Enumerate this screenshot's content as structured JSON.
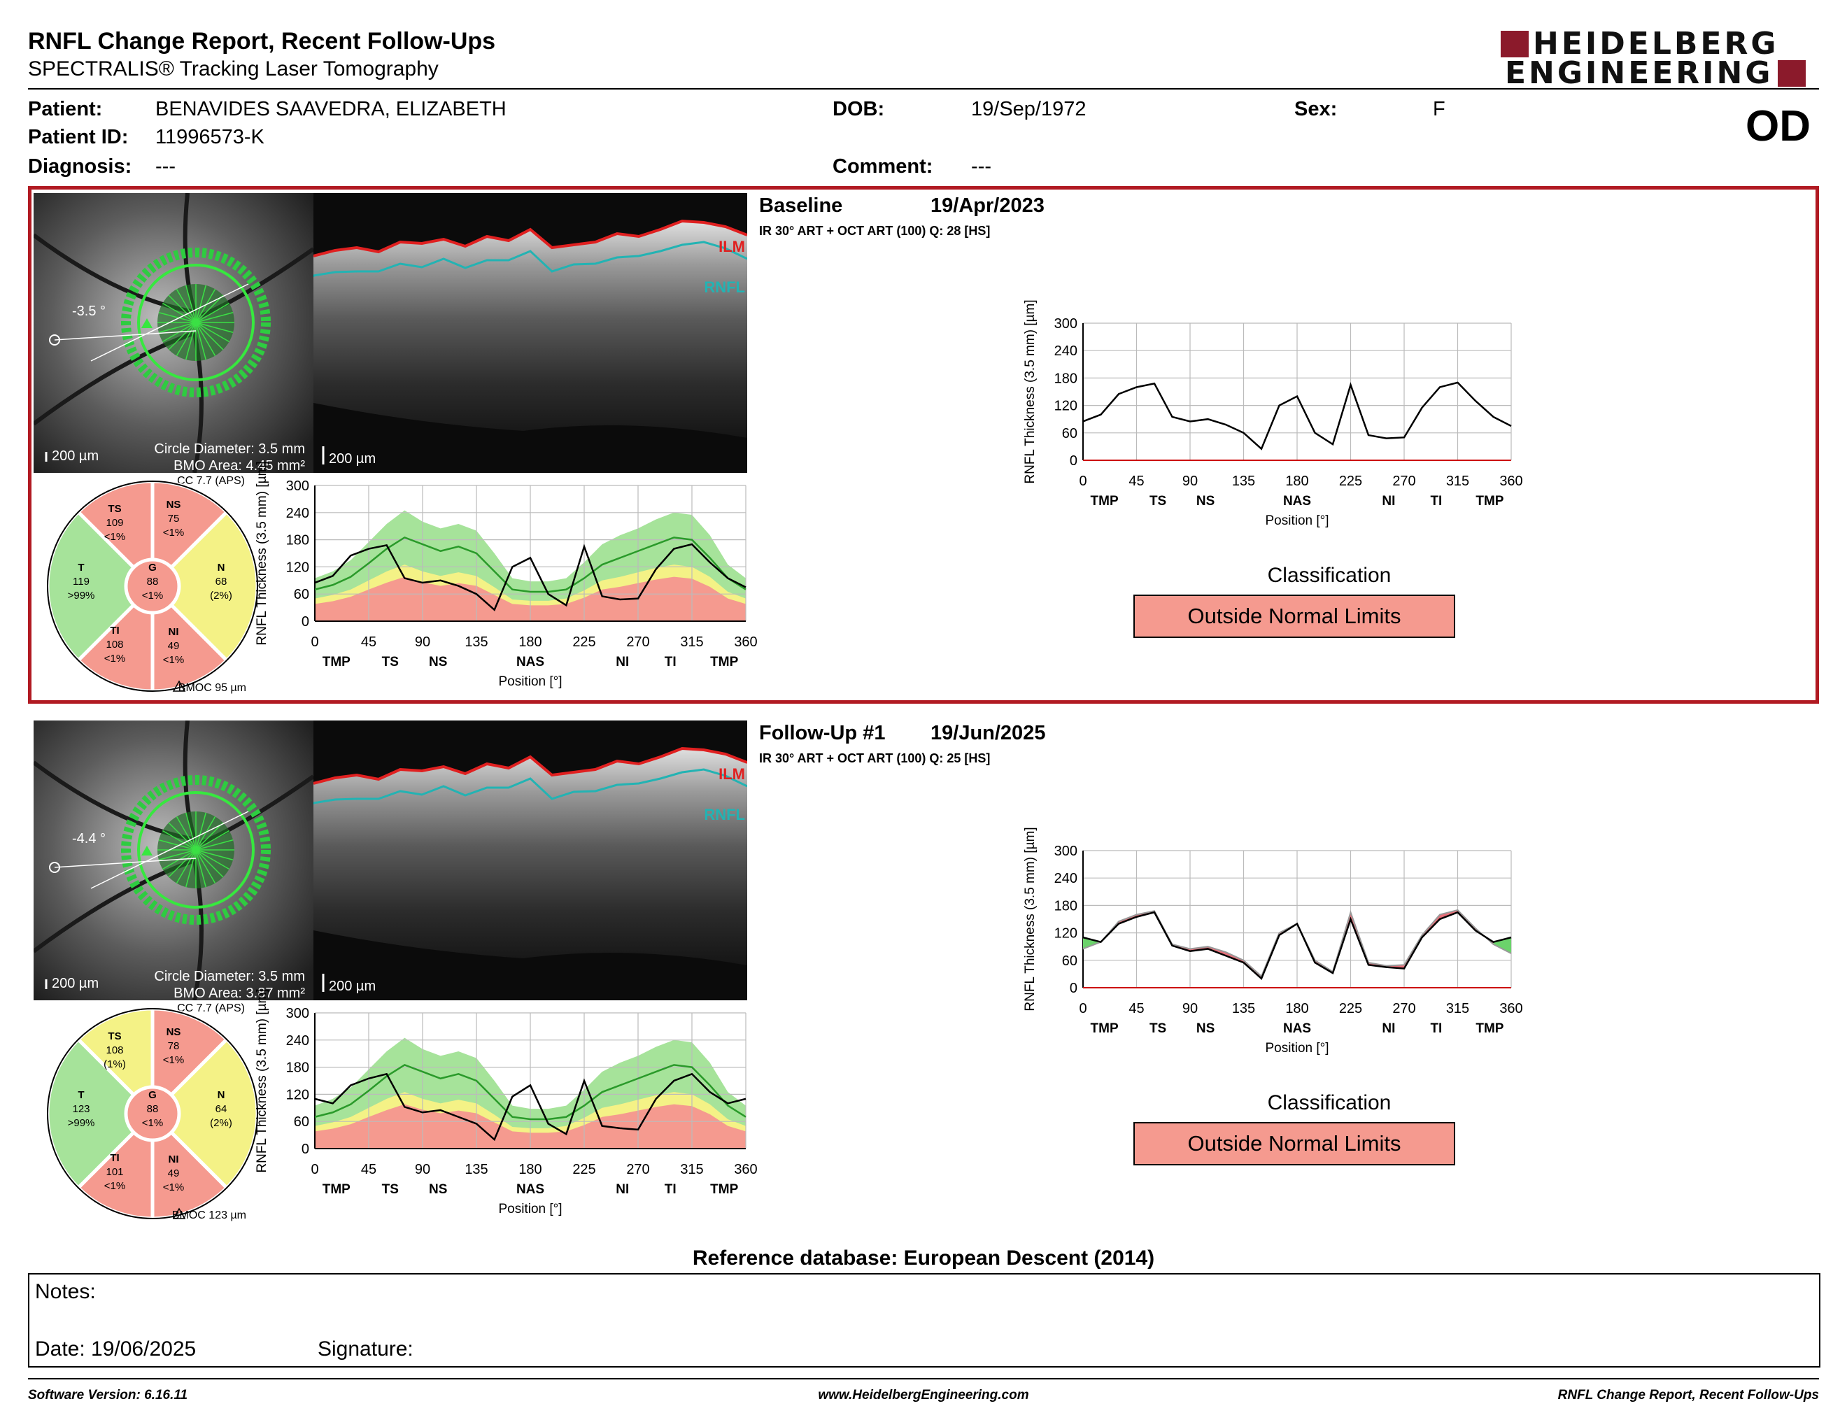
{
  "header": {
    "report_title": "RNFL Change Report, Recent Follow-Ups",
    "device": "SPECTRALIS® Tracking Laser Tomography",
    "logo": {
      "line1": "HEIDELBERG",
      "line2": "ENGINEERING",
      "brand_color": "#8b1a2b"
    },
    "eye": "OD"
  },
  "patient": {
    "patient_label": "Patient:",
    "patient": "BENAVIDES SAAVEDRA, ELIZABETH",
    "id_label": "Patient ID:",
    "id": "11996573-K",
    "diagnosis_label": "Diagnosis:",
    "diagnosis": "---",
    "dob_label": "DOB:",
    "dob": "19/Sep/1972",
    "comment_label": "Comment:",
    "comment": "---",
    "sex_label": "Sex:",
    "sex": "F"
  },
  "exams": [
    {
      "title": "Baseline",
      "date": "19/Apr/2023",
      "subtitle": "IR 30° ART + OCT ART (100) Q: 28 [HS]",
      "fundus": {
        "angle": "-3.5 °",
        "scale": "200 µm",
        "circle": "Circle Diameter: 3.5 mm",
        "bmo": "BMO Area: 4.45 mm²"
      },
      "oct_scale": "200 µm",
      "ilm": "ILM",
      "rnfl": "RNFL",
      "cc": "CC 7.7 (APS)",
      "bmoc": "BMOC 95 µm",
      "sectors": {
        "TS": {
          "v": "109",
          "p": "<1%"
        },
        "NS": {
          "v": "75",
          "p": "<1%"
        },
        "T": {
          "v": "119",
          "p": ">99%"
        },
        "G": {
          "v": "88",
          "p": "<1%"
        },
        "N": {
          "v": "68",
          "p": "(2%)"
        },
        "TI": {
          "v": "108",
          "p": "<1%"
        },
        "NI": {
          "v": "49",
          "p": "<1%"
        }
      },
      "classification_title": "Classification",
      "classification": "Outside Normal Limits"
    },
    {
      "title": "Follow-Up #1",
      "date": "19/Jun/2025",
      "subtitle": "IR 30° ART + OCT ART (100) Q: 25 [HS]",
      "fundus": {
        "angle": "-4.4 °",
        "scale": "200 µm",
        "circle": "Circle Diameter: 3.5 mm",
        "bmo": "BMO Area: 3.87 mm²"
      },
      "oct_scale": "200 µm",
      "ilm": "ILM",
      "rnfl": "RNFL",
      "cc": "CC 7.7 (APS)",
      "bmoc": "BMOC 123 µm",
      "sectors": {
        "TS": {
          "v": "108",
          "p": "(1%)"
        },
        "NS": {
          "v": "78",
          "p": "<1%"
        },
        "T": {
          "v": "123",
          "p": ">99%"
        },
        "G": {
          "v": "88",
          "p": "<1%"
        },
        "N": {
          "v": "64",
          "p": "(2%)"
        },
        "TI": {
          "v": "101",
          "p": "<1%"
        },
        "NI": {
          "v": "49",
          "p": "<1%"
        }
      },
      "classification_title": "Classification",
      "classification": "Outside Normal Limits"
    }
  ],
  "chart_data": {
    "type": "line",
    "ylabel": "RNFL Thickness (3.5 mm) [µm]",
    "xlabel": "Position [°]",
    "xlim": [
      0,
      360
    ],
    "ylim": [
      0,
      300
    ],
    "x_ticks": [
      0,
      45,
      90,
      135,
      180,
      225,
      270,
      315,
      360
    ],
    "y_ticks": [
      0,
      60,
      120,
      180,
      240,
      300
    ],
    "sector_labels": [
      {
        "x": 18,
        "label": "TMP"
      },
      {
        "x": 63,
        "label": "TS"
      },
      {
        "x": 103,
        "label": "NS"
      },
      {
        "x": 180,
        "label": "NAS"
      },
      {
        "x": 257,
        "label": "NI"
      },
      {
        "x": 297,
        "label": "TI"
      },
      {
        "x": 342,
        "label": "TMP"
      }
    ],
    "x": [
      0,
      15,
      30,
      45,
      60,
      75,
      90,
      105,
      120,
      135,
      150,
      165,
      180,
      195,
      210,
      225,
      240,
      255,
      270,
      285,
      300,
      315,
      330,
      345,
      360
    ],
    "normal_band": {
      "p99": [
        95,
        110,
        135,
        175,
        215,
        245,
        220,
        205,
        215,
        200,
        150,
        95,
        88,
        88,
        95,
        130,
        170,
        190,
        205,
        225,
        240,
        235,
        190,
        125,
        95
      ],
      "p95": [
        82,
        95,
        115,
        150,
        180,
        205,
        185,
        170,
        180,
        165,
        125,
        80,
        75,
        75,
        82,
        110,
        145,
        160,
        175,
        190,
        205,
        200,
        160,
        108,
        82
      ],
      "p5": [
        50,
        58,
        70,
        90,
        110,
        125,
        110,
        100,
        108,
        100,
        75,
        48,
        45,
        45,
        50,
        68,
        90,
        98,
        108,
        118,
        125,
        120,
        98,
        65,
        50
      ],
      "p1": [
        38,
        44,
        54,
        70,
        85,
        98,
        86,
        78,
        84,
        78,
        58,
        38,
        35,
        35,
        38,
        52,
        70,
        76,
        84,
        92,
        98,
        94,
        76,
        50,
        38
      ],
      "mean": [
        70,
        80,
        98,
        128,
        160,
        185,
        170,
        155,
        165,
        150,
        110,
        70,
        65,
        65,
        70,
        95,
        125,
        140,
        155,
        170,
        185,
        180,
        140,
        95,
        70
      ]
    },
    "series": [
      {
        "name": "Baseline",
        "values": [
          85,
          100,
          145,
          160,
          168,
          95,
          85,
          90,
          78,
          60,
          25,
          120,
          140,
          60,
          35,
          165,
          55,
          48,
          50,
          115,
          160,
          170,
          130,
          95,
          75
        ]
      },
      {
        "name": "Follow-Up #1",
        "values": [
          110,
          100,
          140,
          155,
          165,
          92,
          80,
          85,
          70,
          55,
          20,
          115,
          140,
          55,
          32,
          150,
          50,
          45,
          42,
          110,
          150,
          165,
          125,
          100,
          110
        ]
      }
    ],
    "classification_colors": {
      "outside": "#f59a8f",
      "borderline": "#f4f286",
      "within": "#a6e39a"
    }
  },
  "reference_db": "Reference database: European Descent (2014)",
  "notes": {
    "notes_label": "Notes:",
    "date_label": "Date: 19/06/2025",
    "signature_label": "Signature:"
  },
  "footer": {
    "software": "Software Version: 6.16.11",
    "url": "www.HeidelbergEngineering.com",
    "report": "RNFL Change Report, Recent Follow-Ups"
  }
}
